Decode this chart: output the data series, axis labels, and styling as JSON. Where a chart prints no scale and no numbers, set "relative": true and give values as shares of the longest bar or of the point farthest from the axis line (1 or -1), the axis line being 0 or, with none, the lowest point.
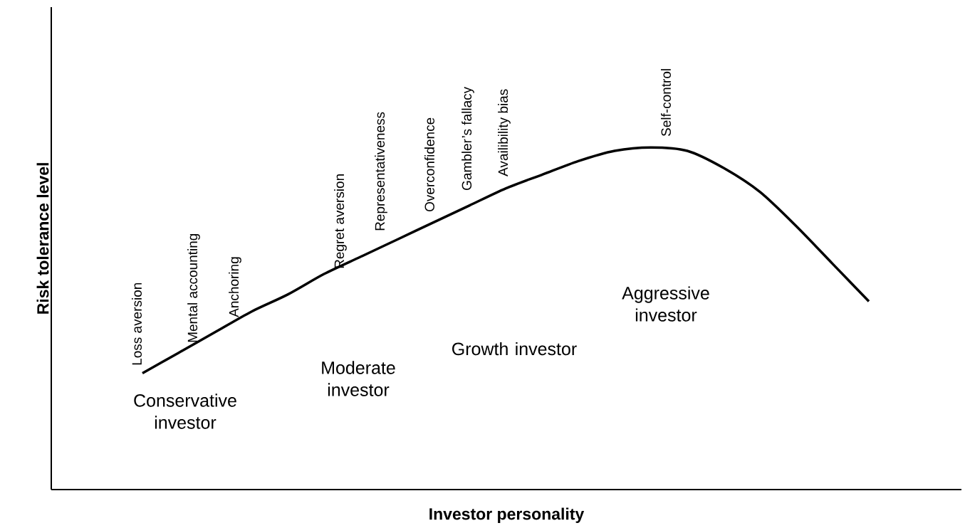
{
  "chart_data": {
    "type": "line",
    "relative": true,
    "xlabel": "Investor personality",
    "ylabel": "Risk tolerance level",
    "categories": [
      null,
      null,
      null,
      null,
      null,
      null,
      null,
      null,
      null,
      null,
      null,
      null,
      null,
      null,
      null,
      null,
      null,
      null,
      null,
      null,
      null
    ],
    "series": [
      {
        "color": "#000000",
        "values": [
          0.34,
          0.4,
          0.46,
          0.52,
          0.57,
          0.63,
          0.68,
          0.73,
          0.78,
          0.83,
          0.88,
          0.92,
          0.96,
          0.99,
          1,
          0.99,
          0.94,
          0.87,
          0.77,
          0.66,
          0.55
        ]
      }
    ],
    "marker": "none",
    "line_style": "solid",
    "annotations": [
      "Loss aversion",
      "Mental accounting",
      "Anchoring",
      "Regret aversion",
      "Representativeness",
      "Overconfidence",
      "Gambler’s fallacy",
      "Availibility bias",
      "Self-control",
      "Conservative investor",
      "Moderate investor",
      "Growth investor",
      "Aggressive investor"
    ]
  }
}
